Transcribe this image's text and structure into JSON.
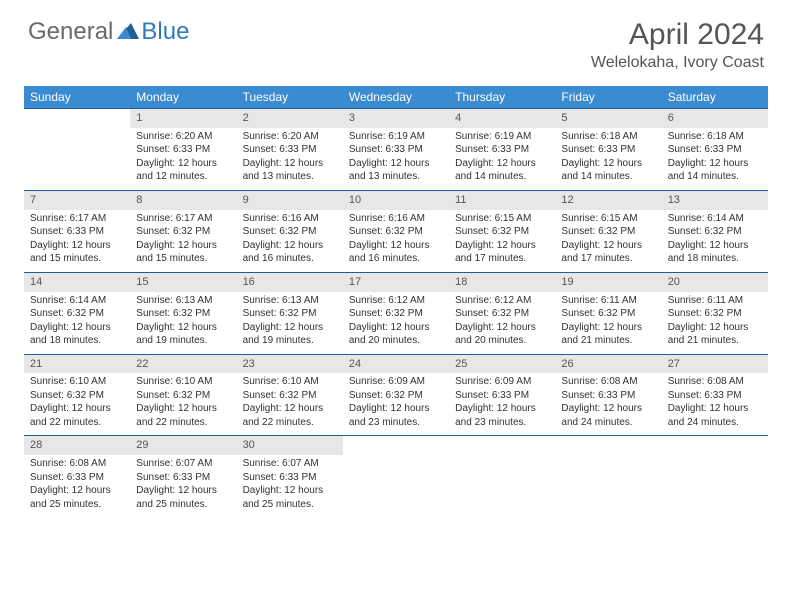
{
  "logo": {
    "general": "General",
    "blue": "Blue"
  },
  "title": "April 2024",
  "location": "Welelokaha, Ivory Coast",
  "colors": {
    "header_bg": "#3a8bd0",
    "border": "#1e5f99",
    "daynum_bg": "#e7e7e7",
    "text": "#333333",
    "logo_gray": "#6a6a6a",
    "logo_blue": "#2f7abf"
  },
  "day_headers": [
    "Sunday",
    "Monday",
    "Tuesday",
    "Wednesday",
    "Thursday",
    "Friday",
    "Saturday"
  ],
  "weeks": [
    {
      "nums": [
        "",
        "1",
        "2",
        "3",
        "4",
        "5",
        "6"
      ],
      "cells": [
        null,
        {
          "sunrise": "Sunrise: 6:20 AM",
          "sunset": "Sunset: 6:33 PM",
          "day1": "Daylight: 12 hours",
          "day2": "and 12 minutes."
        },
        {
          "sunrise": "Sunrise: 6:20 AM",
          "sunset": "Sunset: 6:33 PM",
          "day1": "Daylight: 12 hours",
          "day2": "and 13 minutes."
        },
        {
          "sunrise": "Sunrise: 6:19 AM",
          "sunset": "Sunset: 6:33 PM",
          "day1": "Daylight: 12 hours",
          "day2": "and 13 minutes."
        },
        {
          "sunrise": "Sunrise: 6:19 AM",
          "sunset": "Sunset: 6:33 PM",
          "day1": "Daylight: 12 hours",
          "day2": "and 14 minutes."
        },
        {
          "sunrise": "Sunrise: 6:18 AM",
          "sunset": "Sunset: 6:33 PM",
          "day1": "Daylight: 12 hours",
          "day2": "and 14 minutes."
        },
        {
          "sunrise": "Sunrise: 6:18 AM",
          "sunset": "Sunset: 6:33 PM",
          "day1": "Daylight: 12 hours",
          "day2": "and 14 minutes."
        }
      ]
    },
    {
      "nums": [
        "7",
        "8",
        "9",
        "10",
        "11",
        "12",
        "13"
      ],
      "cells": [
        {
          "sunrise": "Sunrise: 6:17 AM",
          "sunset": "Sunset: 6:33 PM",
          "day1": "Daylight: 12 hours",
          "day2": "and 15 minutes."
        },
        {
          "sunrise": "Sunrise: 6:17 AM",
          "sunset": "Sunset: 6:32 PM",
          "day1": "Daylight: 12 hours",
          "day2": "and 15 minutes."
        },
        {
          "sunrise": "Sunrise: 6:16 AM",
          "sunset": "Sunset: 6:32 PM",
          "day1": "Daylight: 12 hours",
          "day2": "and 16 minutes."
        },
        {
          "sunrise": "Sunrise: 6:16 AM",
          "sunset": "Sunset: 6:32 PM",
          "day1": "Daylight: 12 hours",
          "day2": "and 16 minutes."
        },
        {
          "sunrise": "Sunrise: 6:15 AM",
          "sunset": "Sunset: 6:32 PM",
          "day1": "Daylight: 12 hours",
          "day2": "and 17 minutes."
        },
        {
          "sunrise": "Sunrise: 6:15 AM",
          "sunset": "Sunset: 6:32 PM",
          "day1": "Daylight: 12 hours",
          "day2": "and 17 minutes."
        },
        {
          "sunrise": "Sunrise: 6:14 AM",
          "sunset": "Sunset: 6:32 PM",
          "day1": "Daylight: 12 hours",
          "day2": "and 18 minutes."
        }
      ]
    },
    {
      "nums": [
        "14",
        "15",
        "16",
        "17",
        "18",
        "19",
        "20"
      ],
      "cells": [
        {
          "sunrise": "Sunrise: 6:14 AM",
          "sunset": "Sunset: 6:32 PM",
          "day1": "Daylight: 12 hours",
          "day2": "and 18 minutes."
        },
        {
          "sunrise": "Sunrise: 6:13 AM",
          "sunset": "Sunset: 6:32 PM",
          "day1": "Daylight: 12 hours",
          "day2": "and 19 minutes."
        },
        {
          "sunrise": "Sunrise: 6:13 AM",
          "sunset": "Sunset: 6:32 PM",
          "day1": "Daylight: 12 hours",
          "day2": "and 19 minutes."
        },
        {
          "sunrise": "Sunrise: 6:12 AM",
          "sunset": "Sunset: 6:32 PM",
          "day1": "Daylight: 12 hours",
          "day2": "and 20 minutes."
        },
        {
          "sunrise": "Sunrise: 6:12 AM",
          "sunset": "Sunset: 6:32 PM",
          "day1": "Daylight: 12 hours",
          "day2": "and 20 minutes."
        },
        {
          "sunrise": "Sunrise: 6:11 AM",
          "sunset": "Sunset: 6:32 PM",
          "day1": "Daylight: 12 hours",
          "day2": "and 21 minutes."
        },
        {
          "sunrise": "Sunrise: 6:11 AM",
          "sunset": "Sunset: 6:32 PM",
          "day1": "Daylight: 12 hours",
          "day2": "and 21 minutes."
        }
      ]
    },
    {
      "nums": [
        "21",
        "22",
        "23",
        "24",
        "25",
        "26",
        "27"
      ],
      "cells": [
        {
          "sunrise": "Sunrise: 6:10 AM",
          "sunset": "Sunset: 6:32 PM",
          "day1": "Daylight: 12 hours",
          "day2": "and 22 minutes."
        },
        {
          "sunrise": "Sunrise: 6:10 AM",
          "sunset": "Sunset: 6:32 PM",
          "day1": "Daylight: 12 hours",
          "day2": "and 22 minutes."
        },
        {
          "sunrise": "Sunrise: 6:10 AM",
          "sunset": "Sunset: 6:32 PM",
          "day1": "Daylight: 12 hours",
          "day2": "and 22 minutes."
        },
        {
          "sunrise": "Sunrise: 6:09 AM",
          "sunset": "Sunset: 6:32 PM",
          "day1": "Daylight: 12 hours",
          "day2": "and 23 minutes."
        },
        {
          "sunrise": "Sunrise: 6:09 AM",
          "sunset": "Sunset: 6:33 PM",
          "day1": "Daylight: 12 hours",
          "day2": "and 23 minutes."
        },
        {
          "sunrise": "Sunrise: 6:08 AM",
          "sunset": "Sunset: 6:33 PM",
          "day1": "Daylight: 12 hours",
          "day2": "and 24 minutes."
        },
        {
          "sunrise": "Sunrise: 6:08 AM",
          "sunset": "Sunset: 6:33 PM",
          "day1": "Daylight: 12 hours",
          "day2": "and 24 minutes."
        }
      ]
    },
    {
      "nums": [
        "28",
        "29",
        "30",
        "",
        "",
        "",
        ""
      ],
      "cells": [
        {
          "sunrise": "Sunrise: 6:08 AM",
          "sunset": "Sunset: 6:33 PM",
          "day1": "Daylight: 12 hours",
          "day2": "and 25 minutes."
        },
        {
          "sunrise": "Sunrise: 6:07 AM",
          "sunset": "Sunset: 6:33 PM",
          "day1": "Daylight: 12 hours",
          "day2": "and 25 minutes."
        },
        {
          "sunrise": "Sunrise: 6:07 AM",
          "sunset": "Sunset: 6:33 PM",
          "day1": "Daylight: 12 hours",
          "day2": "and 25 minutes."
        },
        null,
        null,
        null,
        null
      ]
    }
  ]
}
